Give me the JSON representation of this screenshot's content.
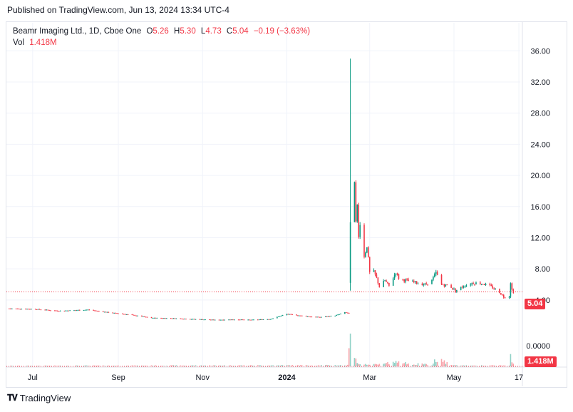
{
  "header": {
    "published": "Published on TradingView.com, Jun 13, 2024 13:34 UTC-4"
  },
  "legend": {
    "symbol": "Beamr Imaging Ltd., 1D, Cboe One",
    "open_label": "O",
    "open": "5.26",
    "high_label": "H",
    "high": "5.30",
    "low_label": "L",
    "low": "4.73",
    "close_label": "C",
    "close": "5.04",
    "change": "−0.19 (−3.63%)",
    "vol_label": "Vol",
    "vol": "1.418M"
  },
  "badges": {
    "last_price": "5.04",
    "last_volume": "1.418M"
  },
  "footer": {
    "brand": "TradingView",
    "logo_icon": "tradingview-logo-icon"
  },
  "colors": {
    "up": "#089981",
    "down": "#f23645",
    "grid": "#f0f3fa",
    "axis_text": "#131722"
  },
  "chart_data": {
    "type": "candlestick",
    "y_ticks": [
      "36.00",
      "32.00",
      "28.00",
      "24.00",
      "20.00",
      "16.00",
      "12.00",
      "8.00",
      "4.00"
    ],
    "volume_tick": "0.0000",
    "x_ticks": [
      {
        "label": "Jul",
        "date": "2023-07-01",
        "bold": false
      },
      {
        "label": "Sep",
        "date": "2023-09-01",
        "bold": false
      },
      {
        "label": "Nov",
        "date": "2023-11-01",
        "bold": false
      },
      {
        "label": "2024",
        "date": "2024-01-01",
        "bold": true
      },
      {
        "label": "Mar",
        "date": "2024-03-01",
        "bold": false
      },
      {
        "label": "May",
        "date": "2024-05-01",
        "bold": false
      },
      {
        "label": "17",
        "date": "2024-06-17",
        "bold": false
      }
    ],
    "ylim": [
      -0.5,
      38.5
    ],
    "x_range": [
      "2023-06-12",
      "2024-06-18"
    ],
    "last_price": 5.04,
    "series_path": [
      [
        "2023-06-14",
        2.9
      ],
      [
        "2023-07-01",
        2.85
      ],
      [
        "2023-07-20",
        2.6
      ],
      [
        "2023-08-10",
        2.75
      ],
      [
        "2023-08-25",
        2.4
      ],
      [
        "2023-09-10",
        2.1
      ],
      [
        "2023-09-25",
        1.7
      ],
      [
        "2023-10-10",
        1.65
      ],
      [
        "2023-10-25",
        1.55
      ],
      [
        "2023-11-10",
        1.45
      ],
      [
        "2023-11-25",
        1.5
      ],
      [
        "2023-12-05",
        1.45
      ],
      [
        "2023-12-20",
        1.55
      ],
      [
        "2024-01-01",
        2.2
      ],
      [
        "2024-01-15",
        1.9
      ],
      [
        "2024-01-25",
        1.8
      ],
      [
        "2024-02-05",
        2.0
      ],
      [
        "2024-02-12",
        2.4
      ],
      [
        "2024-02-15",
        2.3
      ],
      [
        "2024-02-16",
        8.0
      ],
      [
        "2024-02-17",
        16.0
      ],
      [
        "2024-02-18",
        13.0
      ],
      [
        "2024-02-19",
        19.5
      ],
      [
        "2024-02-20",
        14.5
      ],
      [
        "2024-02-21",
        16.0
      ],
      [
        "2024-02-22",
        12.0
      ],
      [
        "2024-02-23",
        14.0
      ],
      [
        "2024-02-25",
        11.0
      ],
      [
        "2024-02-26",
        9.5
      ],
      [
        "2024-02-28",
        11.0
      ],
      [
        "2024-03-01",
        7.5
      ],
      [
        "2024-03-03",
        8.0
      ],
      [
        "2024-03-06",
        6.8
      ],
      [
        "2024-03-08",
        5.7
      ],
      [
        "2024-03-12",
        6.5
      ],
      [
        "2024-03-15",
        5.8
      ],
      [
        "2024-03-20",
        7.6
      ],
      [
        "2024-03-22",
        6.8
      ],
      [
        "2024-03-25",
        6.6
      ],
      [
        "2024-04-01",
        6.3
      ],
      [
        "2024-04-10",
        6.0
      ],
      [
        "2024-04-15",
        6.5
      ],
      [
        "2024-04-18",
        7.5
      ],
      [
        "2024-04-22",
        6.0
      ],
      [
        "2024-04-28",
        5.8
      ],
      [
        "2024-05-02",
        5.2
      ],
      [
        "2024-05-08",
        5.8
      ],
      [
        "2024-05-15",
        6.2
      ],
      [
        "2024-05-22",
        6.1
      ],
      [
        "2024-05-28",
        5.7
      ],
      [
        "2024-06-03",
        5.0
      ],
      [
        "2024-06-06",
        4.4
      ],
      [
        "2024-06-10",
        4.5
      ],
      [
        "2024-06-11",
        6.3
      ],
      [
        "2024-06-12",
        5.3
      ],
      [
        "2024-06-13",
        5.04
      ]
    ],
    "spike": {
      "date": "2024-02-16",
      "open": 6.2,
      "high": 35.0,
      "low": 5.2,
      "close": 14.0
    },
    "volume_path": [
      [
        "2023-06-14",
        0.02
      ],
      [
        "2024-02-14",
        0.04
      ],
      [
        "2024-02-16",
        1.0
      ],
      [
        "2024-02-17",
        0.35
      ],
      [
        "2024-02-19",
        0.25
      ],
      [
        "2024-02-22",
        0.12
      ],
      [
        "2024-03-01",
        0.06
      ],
      [
        "2024-03-20",
        0.15
      ],
      [
        "2024-04-15",
        0.05
      ],
      [
        "2024-04-18",
        0.28
      ],
      [
        "2024-05-01",
        0.03
      ],
      [
        "2024-06-10",
        0.03
      ],
      [
        "2024-06-11",
        0.32
      ],
      [
        "2024-06-12",
        0.12
      ],
      [
        "2024-06-13",
        0.08
      ]
    ]
  }
}
